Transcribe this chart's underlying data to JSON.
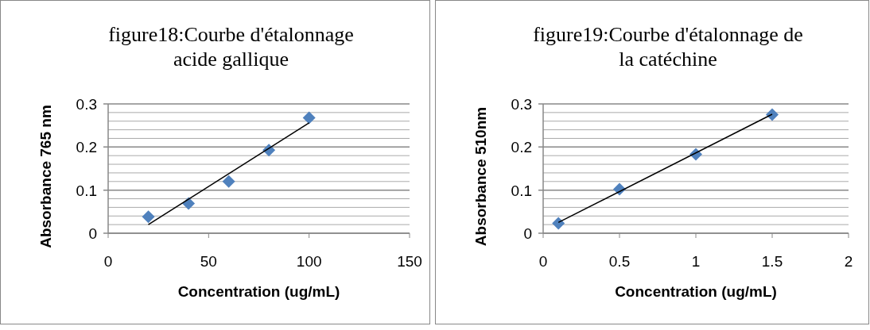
{
  "chart_data": [
    {
      "type": "scatter",
      "title": "figure18:Courbe d'étalonnage acide gallique",
      "xlabel": "Concentration (ug/mL)",
      "ylabel": "Absorbance 765 nm",
      "grid": "y",
      "series": [
        {
          "color": "#4f81bd",
          "marker": "diamond",
          "x": [
            20,
            40,
            60,
            80,
            100
          ],
          "values": [
            0.038,
            0.069,
            0.12,
            0.193,
            0.268
          ]
        },
        {
          "type": "line",
          "marker": "none",
          "color": "#000000",
          "x": [
            20,
            100
          ],
          "values": [
            0.02,
            0.256
          ]
        }
      ],
      "xlim": [
        0,
        150
      ],
      "xticks": [
        0,
        50,
        100,
        150
      ],
      "ylim": [
        0,
        0.3
      ],
      "yticks": [
        0,
        {
          "value": 0.02,
          "label": null
        },
        {
          "value": 0.04,
          "label": null
        },
        {
          "value": 0.06,
          "label": null
        },
        {
          "value": 0.08,
          "label": null
        },
        {
          "value": 0.1,
          "label": "0.1"
        },
        {
          "value": 0.12,
          "label": null
        },
        {
          "value": 0.14,
          "label": null
        },
        {
          "value": 0.16,
          "label": null
        },
        {
          "value": 0.18,
          "label": null
        },
        {
          "value": 0.2,
          "label": "0.2"
        },
        {
          "value": 0.22,
          "label": null
        },
        {
          "value": 0.24,
          "label": null
        },
        {
          "value": 0.26,
          "label": null
        },
        {
          "value": 0.28,
          "label": null
        },
        {
          "value": 0.3,
          "label": "0.3"
        }
      ]
    },
    {
      "type": "scatter",
      "title": "figure19:Courbe d'étalonnage de la catéchine",
      "xlabel": "Concentration (ug/mL)",
      "ylabel": "Absorbance 510nm",
      "grid": "y",
      "series": [
        {
          "color": "#4f81bd",
          "marker": "diamond",
          "x": [
            0.1,
            0.5,
            1,
            1.5
          ],
          "values": [
            0.023,
            0.102,
            0.183,
            0.275
          ]
        },
        {
          "type": "line",
          "marker": "none",
          "color": "#000000",
          "x": [
            0.1,
            1.5
          ],
          "values": [
            0.025,
            0.276
          ]
        }
      ],
      "xlim": [
        0,
        2
      ],
      "xticks": [
        0,
        0.5,
        1,
        1.5,
        2
      ],
      "ylim": [
        0,
        0.3
      ],
      "yticks": [
        0,
        {
          "value": 0.02,
          "label": null
        },
        {
          "value": 0.04,
          "label": null
        },
        {
          "value": 0.06,
          "label": null
        },
        {
          "value": 0.08,
          "label": null
        },
        {
          "value": 0.1,
          "label": "0.1"
        },
        {
          "value": 0.12,
          "label": null
        },
        {
          "value": 0.14,
          "label": null
        },
        {
          "value": 0.16,
          "label": null
        },
        {
          "value": 0.18,
          "label": null
        },
        {
          "value": 0.2,
          "label": "0.2"
        },
        {
          "value": 0.22,
          "label": null
        },
        {
          "value": 0.24,
          "label": null
        },
        {
          "value": 0.26,
          "label": null
        },
        {
          "value": 0.28,
          "label": null
        },
        {
          "value": 0.3,
          "label": "0.3"
        }
      ]
    }
  ]
}
